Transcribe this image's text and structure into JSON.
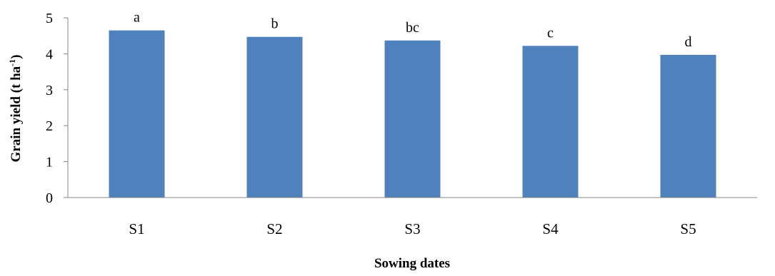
{
  "chart_data": {
    "type": "bar",
    "categories": [
      "S1",
      "S2",
      "S3",
      "S4",
      "S5"
    ],
    "values": [
      4.65,
      4.47,
      4.37,
      4.22,
      3.97
    ],
    "data_labels": [
      "a",
      "b",
      "bc",
      "c",
      "d"
    ],
    "xlabel": "Sowing dates",
    "ylabel_main": "Grain yield (t ha",
    "ylabel_sup": "-1",
    "ylabel_tail": ")",
    "ylim": [
      0,
      5
    ],
    "yticks": [
      0,
      1,
      2,
      3,
      4,
      5
    ],
    "ytick_labels": [
      "0",
      "1",
      "2",
      "3",
      "4",
      "5"
    ],
    "grid": false,
    "legend": "none",
    "bar_color": "#4F81BD",
    "axis_color": "#868686"
  }
}
